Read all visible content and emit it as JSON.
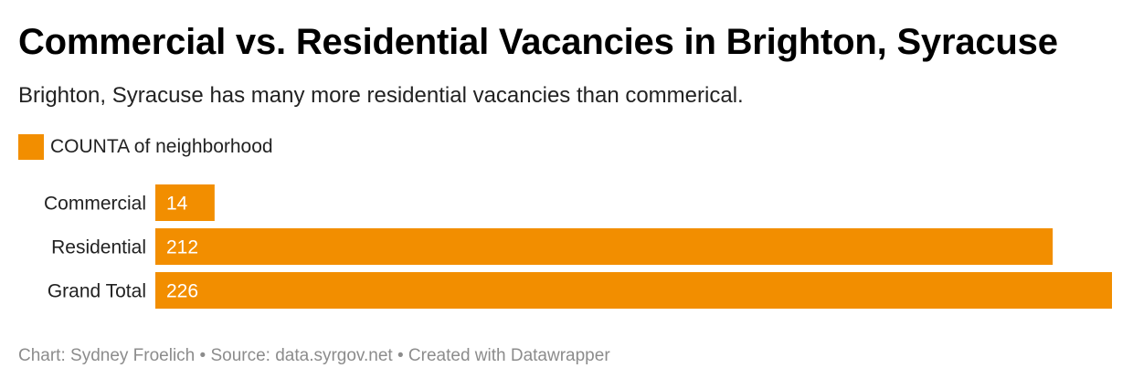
{
  "header": {
    "title": "Commercial vs. Residential Vacancies in Brighton, Syracuse",
    "subtitle": "Brighton, Syracuse has many more residential vacancies than commerical."
  },
  "legend": {
    "label": "COUNTA of neighborhood",
    "color": "#f28e00"
  },
  "chart_data": {
    "type": "bar",
    "orientation": "horizontal",
    "title": "Commercial vs. Residential Vacancies in Brighton, Syracuse",
    "subtitle": "Brighton, Syracuse has many more residential vacancies than commerical.",
    "categories": [
      "Commercial",
      "Residential",
      "Grand Total"
    ],
    "series": [
      {
        "name": "COUNTA of neighborhood",
        "values": [
          14,
          212,
          226
        ],
        "color": "#f28e00"
      }
    ],
    "xlim": [
      0,
      226
    ],
    "grid": false,
    "legend_position": "top-left",
    "data_labels": "inside-left"
  },
  "footer": {
    "text": "Chart: Sydney Froelich  • Source: data.syrgov.net • Created with Datawrapper"
  }
}
